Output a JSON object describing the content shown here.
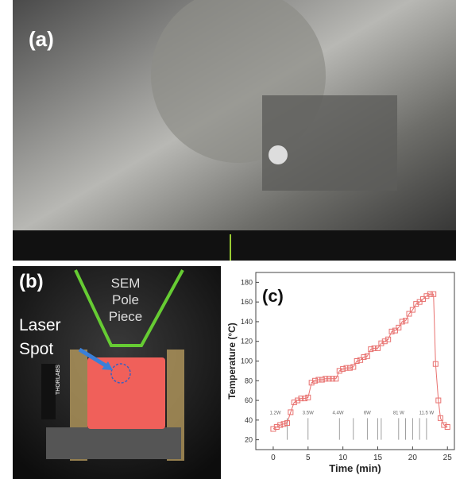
{
  "panels": {
    "a": {
      "label": "(a)"
    },
    "b": {
      "label": "(b)",
      "pole_text": [
        "SEM",
        "Pole",
        "Piece"
      ],
      "laser_text": [
        "Laser",
        "Spot"
      ],
      "brand": "THORLABS"
    }
  },
  "chart_data": {
    "type": "line",
    "panel_label": "(c)",
    "xlabel": "Time (min)",
    "ylabel": "Temperature (°C)",
    "xlim": [
      -2.5,
      26
    ],
    "ylim": [
      10,
      190
    ],
    "xticks": [
      0,
      5,
      10,
      15,
      20,
      25
    ],
    "yticks": [
      20,
      40,
      60,
      80,
      100,
      120,
      140,
      160,
      180
    ],
    "series": [
      {
        "color": "#e8716f",
        "x": [
          0,
          0.5,
          1,
          1.5,
          2,
          2.5,
          3,
          3.5,
          4,
          4.5,
          5,
          5.5,
          6,
          6.5,
          7,
          7.5,
          8,
          8.5,
          9,
          9.5,
          10,
          10.5,
          11,
          11.5,
          12,
          12.5,
          13,
          13.5,
          14,
          14.5,
          15,
          15.5,
          16,
          16.5,
          17,
          17.5,
          18,
          18.5,
          19,
          19.5,
          20,
          20.5,
          21,
          21.5,
          22,
          22.5,
          23,
          23.3,
          23.7,
          24,
          24.5,
          25
        ],
        "values": [
          31,
          33,
          35,
          36,
          37,
          48,
          58,
          60,
          62,
          62,
          63,
          78,
          80,
          81,
          81,
          82,
          82,
          82,
          82,
          90,
          92,
          93,
          93,
          94,
          100,
          101,
          104,
          105,
          112,
          113,
          113,
          118,
          120,
          122,
          130,
          131,
          134,
          140,
          141,
          148,
          152,
          158,
          160,
          163,
          166,
          168,
          168,
          97,
          60,
          42,
          35,
          33
        ]
      }
    ],
    "marker_lines": [
      2,
      5,
      9.5,
      11.5,
      13.5,
      15,
      15.5,
      18,
      19,
      20,
      21,
      22
    ],
    "annotations": [
      {
        "text": "1.2W",
        "x": 0.3
      },
      {
        "text": "3.5W",
        "x": 5
      },
      {
        "text": "4.4W",
        "x": 9.3
      },
      {
        "text": "6W",
        "x": 13.5
      },
      {
        "text": "81 W",
        "x": 18
      },
      {
        "text": "11.5 W",
        "x": 22
      }
    ]
  }
}
